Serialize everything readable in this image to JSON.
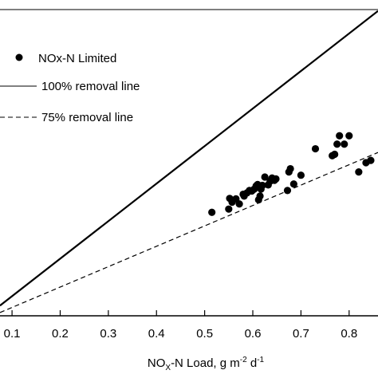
{
  "chart_data": {
    "type": "scatter",
    "xlabel_parts": {
      "prefix": "NO",
      "sub": "X",
      "mid": "-N Load, g m",
      "sup1": "-2",
      "mid2": " d",
      "sup2": "-1"
    },
    "xlim": [
      0.075,
      0.86
    ],
    "ylim": [
      0.06,
      0.72
    ],
    "x_ticks": [
      0.1,
      0.2,
      0.3,
      0.4,
      0.5,
      0.6,
      0.7,
      0.8
    ],
    "x_tick_labels": [
      "0.1",
      "0.2",
      "0.3",
      "0.4",
      "0.5",
      "0.6",
      "0.7",
      "0.8"
    ],
    "legend": {
      "placement": "top-left",
      "entries": [
        {
          "label": "NOx-N Limited",
          "style": "marker"
        },
        {
          "label": "100% removal line",
          "style": "solid"
        },
        {
          "label": "75% removal line",
          "style": "dashed"
        }
      ]
    },
    "series": [
      {
        "name": "NOx-N Limited",
        "kind": "points",
        "x": [
          0.515,
          0.55,
          0.552,
          0.557,
          0.565,
          0.572,
          0.58,
          0.582,
          0.588,
          0.593,
          0.598,
          0.603,
          0.607,
          0.61,
          0.612,
          0.615,
          0.617,
          0.62,
          0.625,
          0.632,
          0.636,
          0.64,
          0.645,
          0.648,
          0.672,
          0.675,
          0.678,
          0.685,
          0.7,
          0.73,
          0.765,
          0.77,
          0.775,
          0.78,
          0.79,
          0.8,
          0.82,
          0.835,
          0.845
        ],
        "y": [
          0.283,
          0.29,
          0.313,
          0.305,
          0.312,
          0.301,
          0.322,
          0.318,
          0.325,
          0.33,
          0.329,
          0.333,
          0.34,
          0.343,
          0.31,
          0.318,
          0.333,
          0.341,
          0.359,
          0.342,
          0.35,
          0.357,
          0.352,
          0.355,
          0.33,
          0.37,
          0.377,
          0.344,
          0.363,
          0.42,
          0.405,
          0.408,
          0.43,
          0.448,
          0.43,
          0.448,
          0.37,
          0.39,
          0.395
        ]
      },
      {
        "name": "100% removal line",
        "kind": "line",
        "style": "solid",
        "x": [
          0.075,
          0.86
        ],
        "y": [
          0.082,
          0.717
        ]
      },
      {
        "name": "75% removal line",
        "kind": "line",
        "style": "dashed",
        "x": [
          0.075,
          0.86
        ],
        "y": [
          0.067,
          0.412
        ]
      }
    ],
    "grid": false
  }
}
